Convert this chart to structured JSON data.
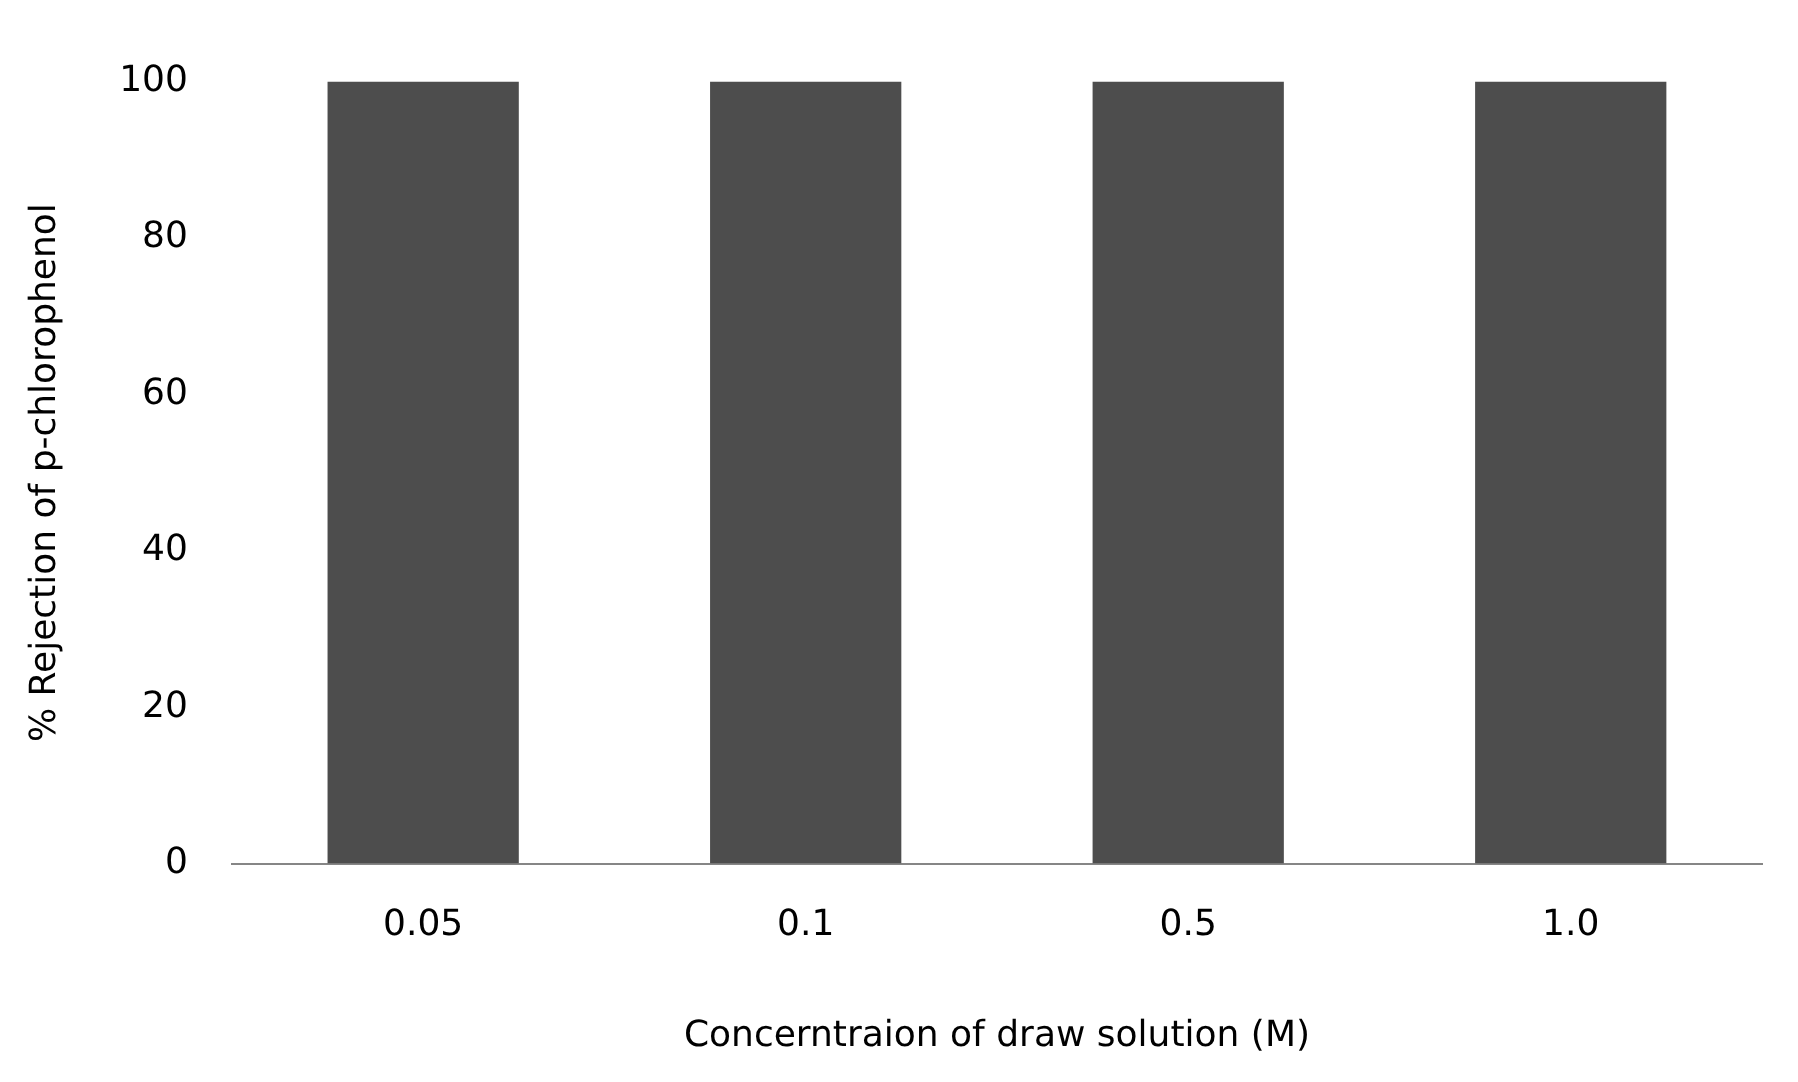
{
  "chart_data": {
    "type": "bar",
    "xlabel": "Concerntraion of draw solution (M)",
    "ylabel": "% Rejection of p-chlorophenol",
    "categories": [
      "0.05",
      "0.1",
      "0.5",
      "1.0"
    ],
    "values": [
      100,
      100,
      100,
      100
    ],
    "color": "#4d4d4d",
    "ylim": [
      0,
      100
    ],
    "yticks": [
      0,
      20,
      40,
      60,
      80,
      100
    ],
    "grid": false,
    "legend": false
  }
}
